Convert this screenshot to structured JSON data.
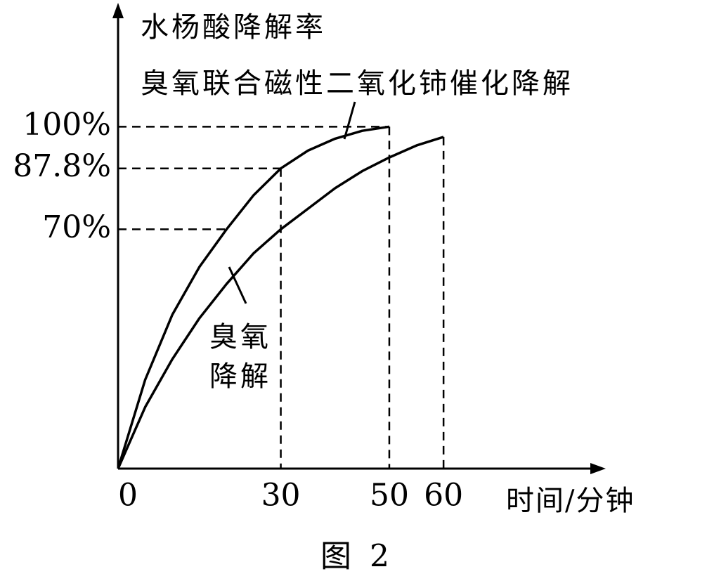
{
  "chart_data": {
    "type": "line",
    "y_label": "水杨酸降解率",
    "x_label": "时间/分钟",
    "caption": "图 2",
    "xlim": [
      0,
      89
    ],
    "ylim": [
      0,
      135
    ],
    "xticks": [
      0,
      30,
      50,
      60
    ],
    "yticks": [
      {
        "value": 100,
        "label": "100%"
      },
      {
        "value": 87.8,
        "label": "87.8%"
      },
      {
        "value": 70,
        "label": "70%"
      }
    ],
    "grid": false,
    "series": [
      {
        "name": "臭氧联合磁性二氧化铈催化降解",
        "color": "#000000",
        "x": [
          0,
          5,
          10,
          15,
          20,
          25,
          30,
          35,
          40,
          45,
          50
        ],
        "values": [
          0,
          26,
          45,
          59,
          70,
          80,
          87.8,
          93,
          96.5,
          98.8,
          100
        ]
      },
      {
        "name": "臭氧降解",
        "color": "#000000",
        "x": [
          0,
          5,
          10,
          15,
          20,
          25,
          30,
          35,
          40,
          45,
          50,
          55,
          60
        ],
        "values": [
          0,
          18,
          32,
          44,
          54,
          63,
          70,
          76,
          82,
          87,
          91,
          94.5,
          97
        ]
      }
    ]
  }
}
